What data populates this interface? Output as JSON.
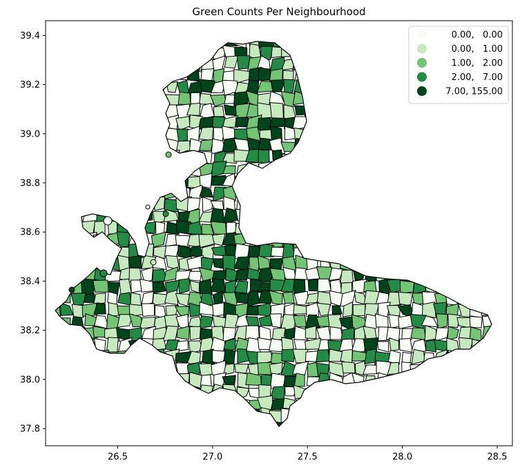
{
  "chart_data": {
    "type": "choropleth",
    "title": "Green Counts Per Neighbourhood",
    "xlim": [
      26.12,
      28.58
    ],
    "ylim": [
      37.73,
      39.46
    ],
    "xticks": [
      {
        "v": 26.5,
        "label": "26.5"
      },
      {
        "v": 27.0,
        "label": "27.0"
      },
      {
        "v": 27.5,
        "label": "27.5"
      },
      {
        "v": 28.0,
        "label": "28.0"
      },
      {
        "v": 28.5,
        "label": "28.5"
      }
    ],
    "yticks": [
      {
        "v": 37.8,
        "label": "37.8"
      },
      {
        "v": 38.0,
        "label": "38.0"
      },
      {
        "v": 38.2,
        "label": "38.2"
      },
      {
        "v": 38.4,
        "label": "38.4"
      },
      {
        "v": 38.6,
        "label": "38.6"
      },
      {
        "v": 38.8,
        "label": "38.8"
      },
      {
        "v": 39.0,
        "label": "39.0"
      },
      {
        "v": 39.2,
        "label": "39.2"
      },
      {
        "v": 39.4,
        "label": "39.4"
      }
    ],
    "legend": {
      "position": "top-right",
      "classes": [
        {
          "label": "0.00,   0.00",
          "color": "#f7fcf5"
        },
        {
          "label": "0.00,   1.00",
          "color": "#c7e9c0"
        },
        {
          "label": "1.00,   2.00",
          "color": "#74c476"
        },
        {
          "label": "2.00,   7.00",
          "color": "#238b45"
        },
        {
          "label": "7.00, 155.00",
          "color": "#00441b"
        }
      ]
    }
  }
}
